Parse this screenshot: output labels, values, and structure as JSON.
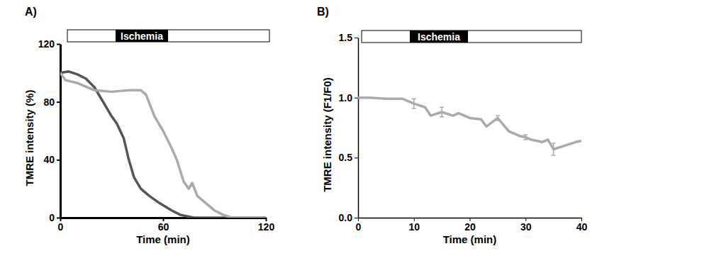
{
  "chart_data": [
    {
      "type": "line",
      "title": "A)",
      "annotation": "Ischemia",
      "x_label": "Time (min)",
      "y_label": "TMRE intensity (%)",
      "xlim": [
        0,
        120
      ],
      "xticks": [
        0,
        60,
        120
      ],
      "ylim": [
        0,
        120
      ],
      "yticks": [
        0,
        40,
        80,
        120
      ],
      "series": [
        {
          "color": "#555555",
          "x": [
            0,
            5,
            10,
            15,
            20,
            25,
            30,
            33,
            37,
            40,
            43,
            47,
            52,
            58,
            65,
            70,
            78,
            120
          ],
          "values": [
            100,
            101,
            99,
            96,
            90,
            80,
            70,
            65,
            55,
            40,
            28,
            20,
            15,
            10,
            5,
            2,
            0,
            0
          ]
        },
        {
          "color": "#aaaaaa",
          "x": [
            0,
            3,
            10,
            20,
            30,
            40,
            47,
            50,
            55,
            60,
            65,
            68,
            72,
            75,
            77,
            80,
            85,
            90,
            95,
            100,
            120
          ],
          "values": [
            100,
            95,
            93,
            88,
            87,
            88,
            88,
            85,
            70,
            60,
            48,
            40,
            25,
            20,
            24,
            15,
            10,
            5,
            2,
            0,
            0
          ]
        }
      ]
    },
    {
      "type": "line",
      "title": "B)",
      "annotation": "Ischemia",
      "x_label": "Time (min)",
      "y_label": "TMRE intensity (F1/F0)",
      "xlim": [
        0,
        40
      ],
      "xticks": [
        0,
        10,
        20,
        30,
        40
      ],
      "ylim": [
        0,
        1.5
      ],
      "yticks": [
        {
          "value": 0,
          "label": "0.0"
        },
        {
          "value": 0.5,
          "label": "0.5"
        },
        {
          "value": 1,
          "label": "1.0"
        },
        {
          "value": 1.5,
          "label": "1.5"
        }
      ],
      "series": [
        {
          "color": "#aaaaaa",
          "x": [
            0,
            2,
            5,
            8,
            10,
            12,
            13,
            15,
            17,
            18,
            20,
            22,
            23,
            25,
            27,
            29,
            30,
            31,
            33,
            34,
            35,
            37,
            39,
            40
          ],
          "values": [
            1.0,
            1.0,
            0.99,
            0.99,
            0.95,
            0.92,
            0.85,
            0.88,
            0.85,
            0.87,
            0.83,
            0.82,
            0.76,
            0.83,
            0.72,
            0.68,
            0.67,
            0.65,
            0.63,
            0.65,
            0.57,
            0.6,
            0.63,
            0.64
          ],
          "errors": [
            null,
            null,
            null,
            null,
            0.04,
            null,
            null,
            0.04,
            null,
            null,
            null,
            null,
            null,
            0.02,
            null,
            null,
            0.02,
            null,
            null,
            null,
            0.05,
            null,
            null,
            null
          ]
        }
      ]
    }
  ]
}
